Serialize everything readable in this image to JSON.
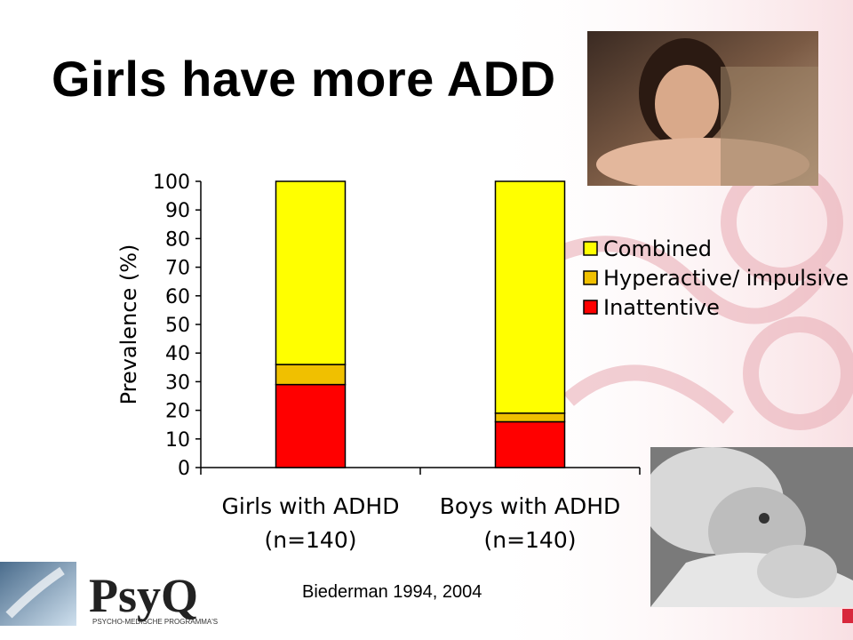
{
  "slide": {
    "title": "Girls have more ADD",
    "citation": "Biederman 1994, 2004"
  },
  "logo": {
    "brand_text": "PsyQ",
    "tagline": "PSYCHO-MEDISCHE PROGRAMMA'S"
  },
  "colors": {
    "combined": "#ffff00",
    "hyperactive": "#f0c000",
    "inattentive": "#ff0000",
    "accent": "#d8283c"
  },
  "chart_data": {
    "type": "bar",
    "stacked": true,
    "categories": [
      "Girls with ADHD\n(n=140)",
      "Boys with ADHD\n(n=140)"
    ],
    "category_lines": [
      [
        "Girls with ADHD",
        "(n=140)"
      ],
      [
        "Boys with ADHD",
        "(n=140)"
      ]
    ],
    "series": [
      {
        "name": "Inattentive",
        "values": [
          29,
          16
        ]
      },
      {
        "name": "Hyperactive/ impulsive",
        "values": [
          7,
          3
        ]
      },
      {
        "name": "Combined",
        "values": [
          64,
          81
        ]
      }
    ],
    "legend_order": [
      "Combined",
      "Hyperactive/ impulsive",
      "Inattentive"
    ],
    "ylabel": "Prevalence (%)",
    "ylim": [
      0,
      100
    ],
    "yticks": [
      0,
      10,
      20,
      30,
      40,
      50,
      60,
      70,
      80,
      90,
      100
    ],
    "grid": false,
    "legend_position": "right"
  }
}
